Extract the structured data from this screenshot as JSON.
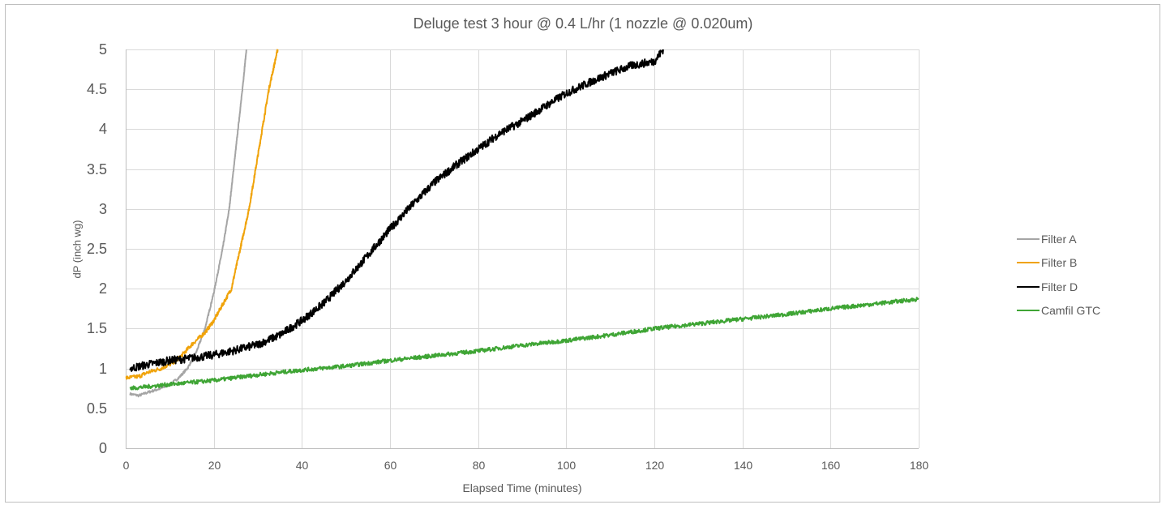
{
  "chart_data": {
    "type": "line",
    "title": "Deluge test 3 hour @ 0.4 L/hr (1 nozzle @ 0.020um)",
    "xlabel": "Elapsed Time (minutes)",
    "ylabel": "dP (inch wg)",
    "xlim": [
      0,
      180
    ],
    "ylim": [
      0,
      5
    ],
    "x_ticks": [
      "0",
      "20",
      "40",
      "60",
      "80",
      "100",
      "120",
      "140",
      "160",
      "180"
    ],
    "y_ticks": [
      "0",
      "0.5",
      "1",
      "1.5",
      "2",
      "2.5",
      "3",
      "3.5",
      "4",
      "4.5",
      "5"
    ],
    "grid": true,
    "legend_position": "right",
    "series": [
      {
        "name": "Filter A",
        "color": "#a5a5a5",
        "x": [
          1,
          3,
          5,
          8,
          10,
          12,
          14,
          16,
          18,
          20,
          22,
          23.5,
          24.5,
          25.5,
          26.5,
          27.4
        ],
        "y": [
          0.68,
          0.66,
          0.7,
          0.75,
          0.8,
          0.88,
          1.0,
          1.2,
          1.5,
          1.95,
          2.5,
          3.0,
          3.5,
          4.0,
          4.5,
          5.0
        ]
      },
      {
        "name": "Filter B",
        "color": "#f0a30a",
        "x": [
          0,
          3,
          5,
          8,
          10,
          12,
          15,
          18,
          20,
          22,
          24,
          26,
          28,
          29.5,
          31,
          32.5,
          34.5
        ],
        "y": [
          0.88,
          0.9,
          0.95,
          1.0,
          1.05,
          1.12,
          1.3,
          1.45,
          1.6,
          1.8,
          2.0,
          2.5,
          3.0,
          3.5,
          4.0,
          4.5,
          5.0
        ]
      },
      {
        "name": "Filter D",
        "color": "#000000",
        "x": [
          1,
          5,
          10,
          15,
          20,
          25,
          30,
          35,
          40,
          45,
          50,
          55,
          60,
          65,
          70,
          75,
          80,
          85,
          90,
          95,
          100,
          105,
          110,
          115,
          120,
          122
        ],
        "y": [
          1.0,
          1.05,
          1.1,
          1.13,
          1.17,
          1.23,
          1.3,
          1.42,
          1.6,
          1.82,
          2.1,
          2.42,
          2.75,
          3.05,
          3.33,
          3.55,
          3.75,
          3.95,
          4.1,
          4.28,
          4.45,
          4.58,
          4.7,
          4.8,
          4.85,
          5.0
        ]
      },
      {
        "name": "Camfil GTC",
        "color": "#3fa535",
        "x": [
          1,
          10,
          20,
          30,
          40,
          50,
          60,
          70,
          80,
          90,
          100,
          110,
          120,
          130,
          140,
          150,
          160,
          170,
          180
        ],
        "y": [
          0.75,
          0.8,
          0.85,
          0.92,
          0.98,
          1.03,
          1.1,
          1.16,
          1.22,
          1.29,
          1.35,
          1.42,
          1.5,
          1.56,
          1.62,
          1.68,
          1.75,
          1.81,
          1.87
        ]
      }
    ]
  },
  "legend": {
    "items": [
      {
        "label": "Filter A",
        "color": "#a5a5a5"
      },
      {
        "label": "Filter B",
        "color": "#f0a30a"
      },
      {
        "label": "Filter D",
        "color": "#000000"
      },
      {
        "label": "Camfil GTC",
        "color": "#3fa535"
      }
    ]
  }
}
